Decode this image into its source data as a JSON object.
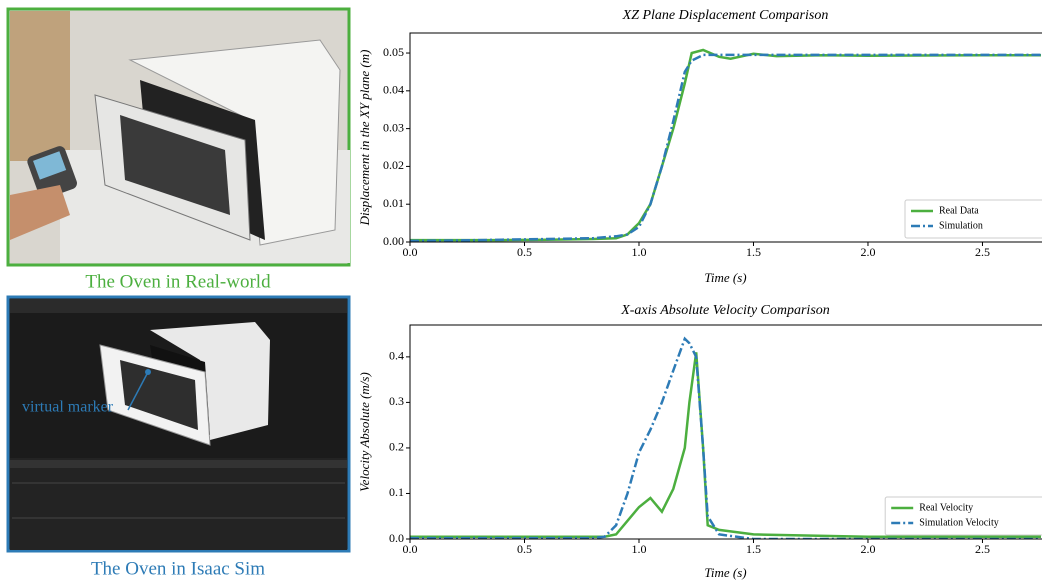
{
  "photos": {
    "real_caption": "The Oven in Real-world",
    "sim_caption": "The Oven in Isaac Sim",
    "marker_label": "virtual marker"
  },
  "chart_data": [
    {
      "type": "line",
      "title": "XZ Plane Displacement Comparison",
      "x_label": "Time (s)",
      "y_label": "Displacement in the XY plane (m)",
      "x": [
        0,
        0.2,
        0.4,
        0.6,
        0.8,
        0.9,
        0.95,
        1.0,
        1.05,
        1.1,
        1.15,
        1.2,
        1.23,
        1.28,
        1.35,
        1.4,
        1.5,
        1.6,
        1.8,
        2.0,
        2.5,
        2.76
      ],
      "series": [
        {
          "name": "Real Data",
          "color": "#4caf3f",
          "dash": "solid",
          "values": [
            0.0005,
            0.0005,
            0.0005,
            0.0006,
            0.0008,
            0.001,
            0.002,
            0.005,
            0.01,
            0.02,
            0.03,
            0.042,
            0.05,
            0.0508,
            0.049,
            0.0485,
            0.0498,
            0.0492,
            0.0494,
            0.0493,
            0.0494,
            0.0494
          ]
        },
        {
          "name": "Simulation",
          "color": "#2d7bb6",
          "dash": "dashdot",
          "values": [
            0.0003,
            0.0004,
            0.0006,
            0.0008,
            0.001,
            0.0015,
            0.002,
            0.004,
            0.01,
            0.02,
            0.032,
            0.045,
            0.048,
            0.0495,
            0.0495,
            0.0495,
            0.0495,
            0.0495,
            0.0495,
            0.0495,
            0.0495,
            0.0495
          ]
        }
      ],
      "xlim": [
        0,
        2.76
      ],
      "ylim": [
        0,
        0.0553
      ],
      "xticks": [
        {
          "value": 0,
          "label": "0.0"
        },
        {
          "value": 0.5,
          "label": "0.5"
        },
        {
          "value": 1,
          "label": "1.0"
        },
        {
          "value": 1.5,
          "label": "1.5"
        },
        {
          "value": 2,
          "label": "2.0"
        },
        {
          "value": 2.5,
          "label": "2.5"
        }
      ],
      "yticks": [
        {
          "value": 0,
          "label": "0.00"
        },
        {
          "value": 0.01,
          "label": "0.01"
        },
        {
          "value": 0.02,
          "label": "0.02"
        },
        {
          "value": 0.03,
          "label": "0.03"
        },
        {
          "value": 0.04,
          "label": "0.04"
        },
        {
          "value": 0.05,
          "label": "0.05"
        }
      ],
      "legend": "lower right"
    },
    {
      "type": "line",
      "title": "X-axis Absolute Velocity Comparison",
      "x_label": "Time (s)",
      "y_label": "Velocity Absolute (m/s)",
      "x": [
        0,
        0.4,
        0.8,
        0.85,
        0.9,
        0.95,
        1.0,
        1.05,
        1.1,
        1.15,
        1.2,
        1.22,
        1.25,
        1.28,
        1.3,
        1.35,
        1.5,
        2.0,
        2.76
      ],
      "series": [
        {
          "name": "Real Velocity",
          "color": "#4caf3f",
          "dash": "solid",
          "values": [
            0.005,
            0.005,
            0.005,
            0.005,
            0.01,
            0.04,
            0.07,
            0.09,
            0.06,
            0.11,
            0.2,
            0.3,
            0.41,
            0.2,
            0.03,
            0.02,
            0.01,
            0.005,
            0.005
          ]
        },
        {
          "name": "Simulation Velocity",
          "color": "#2d7bb6",
          "dash": "dashdot",
          "values": [
            0.002,
            0.002,
            0.002,
            0.005,
            0.03,
            0.1,
            0.19,
            0.24,
            0.3,
            0.37,
            0.44,
            0.43,
            0.4,
            0.2,
            0.05,
            0.01,
            0,
            0,
            0
          ]
        }
      ],
      "xlim": [
        0,
        2.76
      ],
      "ylim": [
        0,
        0.47
      ],
      "xticks": [
        {
          "value": 0,
          "label": "0.0"
        },
        {
          "value": 0.5,
          "label": "0.5"
        },
        {
          "value": 1,
          "label": "1.0"
        },
        {
          "value": 1.5,
          "label": "1.5"
        },
        {
          "value": 2,
          "label": "2.0"
        },
        {
          "value": 2.5,
          "label": "2.5"
        }
      ],
      "yticks": [
        {
          "value": 0,
          "label": "0.0"
        },
        {
          "value": 0.1,
          "label": "0.1"
        },
        {
          "value": 0.2,
          "label": "0.2"
        },
        {
          "value": 0.3,
          "label": "0.3"
        },
        {
          "value": 0.4,
          "label": "0.4"
        }
      ],
      "legend": "lower right"
    }
  ]
}
